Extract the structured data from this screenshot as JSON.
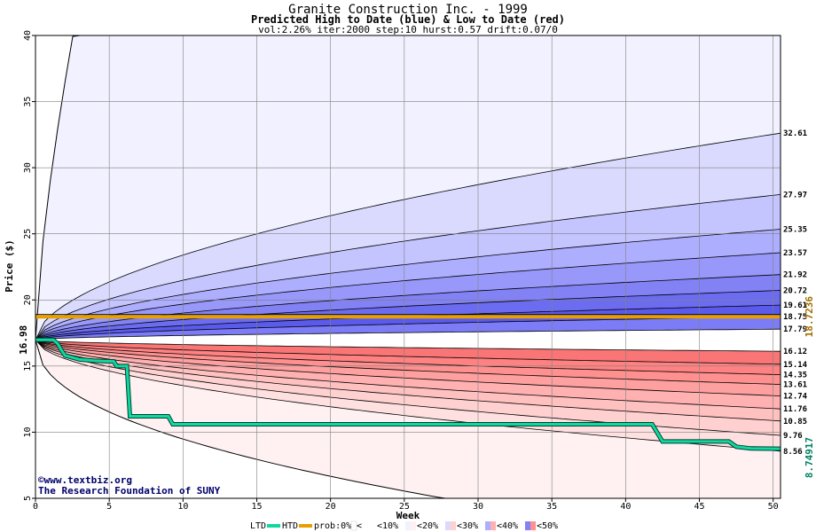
{
  "chart_data": {
    "type": "area",
    "title": "Granite Construction Inc. - 1999",
    "subtitle": "Predicted High to Date (blue) &  Low to Date (red)",
    "params": "vol:2.26% iter:2000 step:10 hurst:0.57 drift:0.07/0",
    "xlabel": "Week",
    "ylabel": "Price ($)",
    "xlim": [
      0,
      50.5
    ],
    "ylim": [
      5,
      40
    ],
    "x_ticks": [
      0,
      5,
      10,
      15,
      20,
      25,
      30,
      35,
      40,
      45,
      50
    ],
    "y_ticks": [
      5,
      10,
      15,
      20,
      25,
      30,
      35,
      40
    ],
    "grid": true,
    "start_price": 16.98,
    "start_label": "16.98",
    "high_band_end_values": [
      32.61,
      27.97,
      25.35,
      23.57,
      21.92,
      20.72,
      19.61,
      18.75,
      17.79
    ],
    "high_band_labels": [
      "32.61",
      "27.97",
      "25.35",
      "23.57",
      "21.92",
      "20.72",
      "19.61",
      "18.75",
      "17.79"
    ],
    "low_band_end_values": [
      16.12,
      15.14,
      14.35,
      13.61,
      12.74,
      11.76,
      10.85,
      9.76,
      8.56
    ],
    "low_band_labels": [
      "16.12",
      "15.14",
      "14.35",
      "13.61",
      "12.74",
      "11.76",
      "10.85",
      "9.76",
      "8.56"
    ],
    "colors": {
      "blue_bands": [
        "#f1f1ff",
        "#dadaff",
        "#c4c4ff",
        "#aeaeff",
        "#9898fa",
        "#8282f5",
        "#6c6cf0",
        "#5a5aec",
        "#7c7cf6"
      ],
      "red_bands": [
        "#fff1f1",
        "#ffe0e0",
        "#ffd0d0",
        "#ffc0c0",
        "#ffb0b0",
        "#ffa0a0",
        "#ff9090",
        "#ff8282",
        "#fa7575"
      ],
      "htd_line": "#e8a000",
      "ltd_line": "#10d8a0"
    },
    "series": [
      {
        "name": "HTD",
        "points": [
          [
            0,
            18.73
          ],
          [
            50.5,
            18.73
          ]
        ],
        "end_label": "18.7236"
      },
      {
        "name": "LTD",
        "points": [
          [
            0,
            16.98
          ],
          [
            1.2,
            16.98
          ],
          [
            1.5,
            16.7
          ],
          [
            1.7,
            16.3
          ],
          [
            2.0,
            15.8
          ],
          [
            3.0,
            15.5
          ],
          [
            4.0,
            15.4
          ],
          [
            5.3,
            15.35
          ],
          [
            5.5,
            15.0
          ],
          [
            6.2,
            15.0
          ],
          [
            6.4,
            11.2
          ],
          [
            9.0,
            11.2
          ],
          [
            9.3,
            10.6
          ],
          [
            41.8,
            10.6
          ],
          [
            42.5,
            9.3
          ],
          [
            47.0,
            9.3
          ],
          [
            47.5,
            8.9
          ],
          [
            48.5,
            8.77
          ],
          [
            50.5,
            8.75
          ]
        ],
        "end_label": "8.74917"
      }
    ],
    "legend": {
      "placement": "bottom",
      "ltd": "LTD",
      "htd": "HTD",
      "prob": "prob:0%",
      "bins": [
        "<10%",
        "<20%",
        "<30%",
        "<40%",
        "<50%"
      ]
    },
    "credits": [
      "©www.textbiz.org",
      "The Research Foundation of SUNY"
    ]
  }
}
